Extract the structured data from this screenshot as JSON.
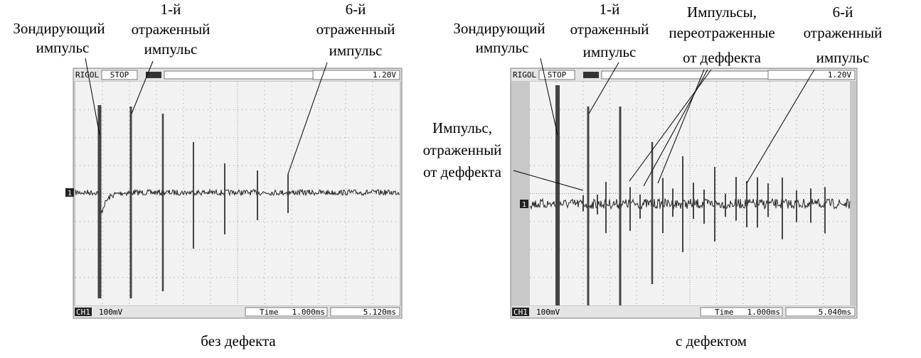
{
  "panels": [
    {
      "annotations": [
        {
          "lines": [
            "Зондирующий",
            "импульс"
          ]
        },
        {
          "lines": [
            "1-й",
            "отраженный",
            "импульс"
          ]
        },
        {
          "lines": [
            "6-й",
            "отраженный",
            "импульс"
          ]
        }
      ],
      "scope": {
        "brand": "RIGOL",
        "status": "STOP",
        "trigger_level": "1.20V",
        "channel_marker": "1",
        "channel": "CH1",
        "volts_per_div": "100mV",
        "time_label": "Time",
        "timebase": "1.000ms",
        "offset": "5.120ms"
      },
      "caption": "без дефекта"
    },
    {
      "annotations": [
        {
          "lines": [
            "Зондирующий",
            "импульс"
          ]
        },
        {
          "lines": [
            "1-й",
            "отраженный",
            "импульс"
          ]
        },
        {
          "lines": [
            "Импульсы,",
            "переотраженные",
            "от деффекта"
          ]
        },
        {
          "lines": [
            "6-й",
            "отраженный",
            "импульс"
          ]
        },
        {
          "lines": [
            "Импульс,",
            "отраженный",
            "от деффекта"
          ]
        }
      ],
      "scope": {
        "brand": "RIGOL",
        "status": "STOP",
        "trigger_level": "1.20V",
        "channel_marker": "1",
        "channel": "CH1",
        "volts_per_div": "100mV",
        "time_label": "Time",
        "timebase": "1.000ms",
        "offset": "5.040ms"
      },
      "caption": "с дефектом"
    }
  ]
}
